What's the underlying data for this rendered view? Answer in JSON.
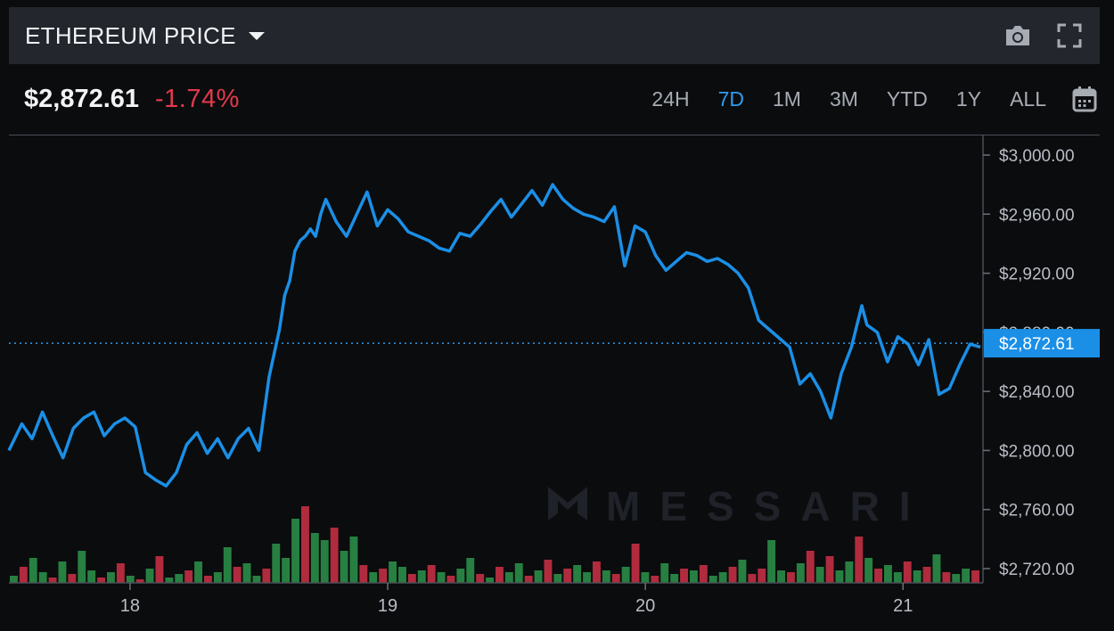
{
  "header": {
    "title": "ETHEREUM PRICE"
  },
  "icons": {
    "camera": "camera-icon",
    "fullscreen": "fullscreen-icon",
    "calendar": "calendar-icon",
    "dropdown": "chevron-down-icon"
  },
  "stats": {
    "price": "$2,872.61",
    "change": "-1.74%"
  },
  "tabs": [
    {
      "label": "24H",
      "active": false
    },
    {
      "label": "7D",
      "active": true
    },
    {
      "label": "1M",
      "active": false
    },
    {
      "label": "3M",
      "active": false
    },
    {
      "label": "YTD",
      "active": false
    },
    {
      "label": "1Y",
      "active": false
    },
    {
      "label": "ALL",
      "active": false
    }
  ],
  "watermark": "MESSARI",
  "colors": {
    "line": "#1b8fe6",
    "accent": "#2d9cf0",
    "negative": "#e2394b",
    "volume_up": "#2e9e4f",
    "volume_down": "#d9334a"
  },
  "chart_data": {
    "type": "line",
    "ylim": [
      2710,
      3010
    ],
    "y_ticks": [
      {
        "v": 3000,
        "label": "$3,000.00"
      },
      {
        "v": 2960,
        "label": "$2,960.00"
      },
      {
        "v": 2920,
        "label": "$2,920.00"
      },
      {
        "v": 2880,
        "label": "$2,880.00"
      },
      {
        "v": 2840,
        "label": "$2,840.00"
      },
      {
        "v": 2800,
        "label": "$2,800.00"
      },
      {
        "v": 2760,
        "label": "$2,760.00"
      },
      {
        "v": 2720,
        "label": "$2,720.00"
      }
    ],
    "x_ticks": [
      {
        "day": 18,
        "label": "18"
      },
      {
        "day": 19,
        "label": "19"
      },
      {
        "day": 20,
        "label": "20"
      },
      {
        "day": 21,
        "label": "21"
      }
    ],
    "xlim": [
      17.53,
      21.3
    ],
    "current_price_label": "$2,872.61",
    "current_price": 2872.61,
    "series": [
      {
        "x": [
          17.53,
          17.58,
          17.62,
          17.66,
          17.7,
          17.74,
          17.78,
          17.82,
          17.86,
          17.9,
          17.94,
          17.98,
          18.02,
          18.06,
          18.1,
          18.14,
          18.18,
          18.22,
          18.26,
          18.3,
          18.34,
          18.38,
          18.42,
          18.46,
          18.5,
          18.54,
          18.58,
          18.6,
          18.62,
          18.64,
          18.66,
          18.68,
          18.7,
          18.72,
          18.74,
          18.76,
          18.8,
          18.84,
          18.88,
          18.92,
          18.96,
          19.0,
          19.04,
          19.08,
          19.12,
          19.16,
          19.2,
          19.24,
          19.28,
          19.32,
          19.36,
          19.4,
          19.44,
          19.48,
          19.52,
          19.56,
          19.6,
          19.64,
          19.68,
          19.72,
          19.76,
          19.8,
          19.84,
          19.88,
          19.92,
          19.96,
          20.0,
          20.04,
          20.08,
          20.12,
          20.16,
          20.2,
          20.24,
          20.28,
          20.32,
          20.36,
          20.4,
          20.44,
          20.48,
          20.52,
          20.56,
          20.6,
          20.64,
          20.68,
          20.72,
          20.76,
          20.8,
          20.84,
          20.86,
          20.9,
          20.94,
          20.98,
          21.02,
          21.06,
          21.1,
          21.14,
          21.18,
          21.22,
          21.26,
          21.3
        ],
        "y": [
          2800,
          2818,
          2808,
          2826,
          2810,
          2795,
          2815,
          2822,
          2826,
          2810,
          2818,
          2822,
          2816,
          2785,
          2780,
          2776,
          2785,
          2804,
          2812,
          2798,
          2808,
          2795,
          2808,
          2815,
          2800,
          2850,
          2882,
          2905,
          2915,
          2935,
          2942,
          2945,
          2950,
          2945,
          2960,
          2970,
          2955,
          2945,
          2960,
          2975,
          2952,
          2963,
          2957,
          2948,
          2945,
          2942,
          2937,
          2935,
          2947,
          2945,
          2953,
          2962,
          2970,
          2958,
          2967,
          2976,
          2966,
          2980,
          2970,
          2964,
          2960,
          2958,
          2955,
          2965,
          2925,
          2952,
          2948,
          2932,
          2922,
          2928,
          2934,
          2932,
          2928,
          2930,
          2926,
          2920,
          2910,
          2888,
          2882,
          2876,
          2870,
          2845,
          2852,
          2840,
          2822,
          2852,
          2870,
          2898,
          2885,
          2880,
          2860,
          2877,
          2872,
          2858,
          2875,
          2838,
          2842,
          2858,
          2872,
          2870
        ]
      }
    ],
    "volume": [
      4,
      9,
      14,
      6,
      3,
      12,
      5,
      18,
      7,
      3,
      6,
      11,
      4,
      2,
      8,
      15,
      3,
      5,
      7,
      12,
      4,
      6,
      20,
      9,
      11,
      4,
      8,
      22,
      14,
      36,
      43,
      28,
      24,
      31,
      18,
      26,
      10,
      6,
      8,
      12,
      9,
      5,
      7,
      10,
      6,
      4,
      8,
      14,
      5,
      3,
      9,
      6,
      11,
      4,
      7,
      13,
      5,
      8,
      10,
      6,
      12,
      7,
      5,
      9,
      22,
      6,
      4,
      11,
      5,
      8,
      7,
      10,
      4,
      6,
      9,
      13,
      5,
      8,
      24,
      7,
      6,
      11,
      18,
      9,
      15,
      7,
      12,
      26,
      14,
      8,
      10,
      6,
      12,
      7,
      9,
      16,
      6,
      5,
      8,
      7
    ],
    "volume_up": [
      true,
      false,
      true,
      true,
      false,
      true,
      false,
      true,
      true,
      false,
      true,
      false,
      true,
      false,
      true,
      false,
      true,
      true,
      false,
      true,
      false,
      true,
      true,
      false,
      true,
      true,
      false,
      true,
      true,
      true,
      false,
      true,
      true,
      false,
      true,
      true,
      false,
      true,
      false,
      true,
      true,
      false,
      true,
      false,
      true,
      false,
      true,
      true,
      false,
      true,
      false,
      true,
      true,
      false,
      true,
      false,
      true,
      false,
      true,
      true,
      false,
      true,
      false,
      true,
      false,
      true,
      false,
      true,
      true,
      false,
      true,
      false,
      true,
      true,
      false,
      true,
      false,
      false,
      true,
      true,
      false,
      true,
      false,
      true,
      false,
      true,
      true,
      false,
      true,
      false,
      true,
      true,
      false,
      true,
      false,
      true,
      false,
      true,
      true,
      false
    ]
  }
}
